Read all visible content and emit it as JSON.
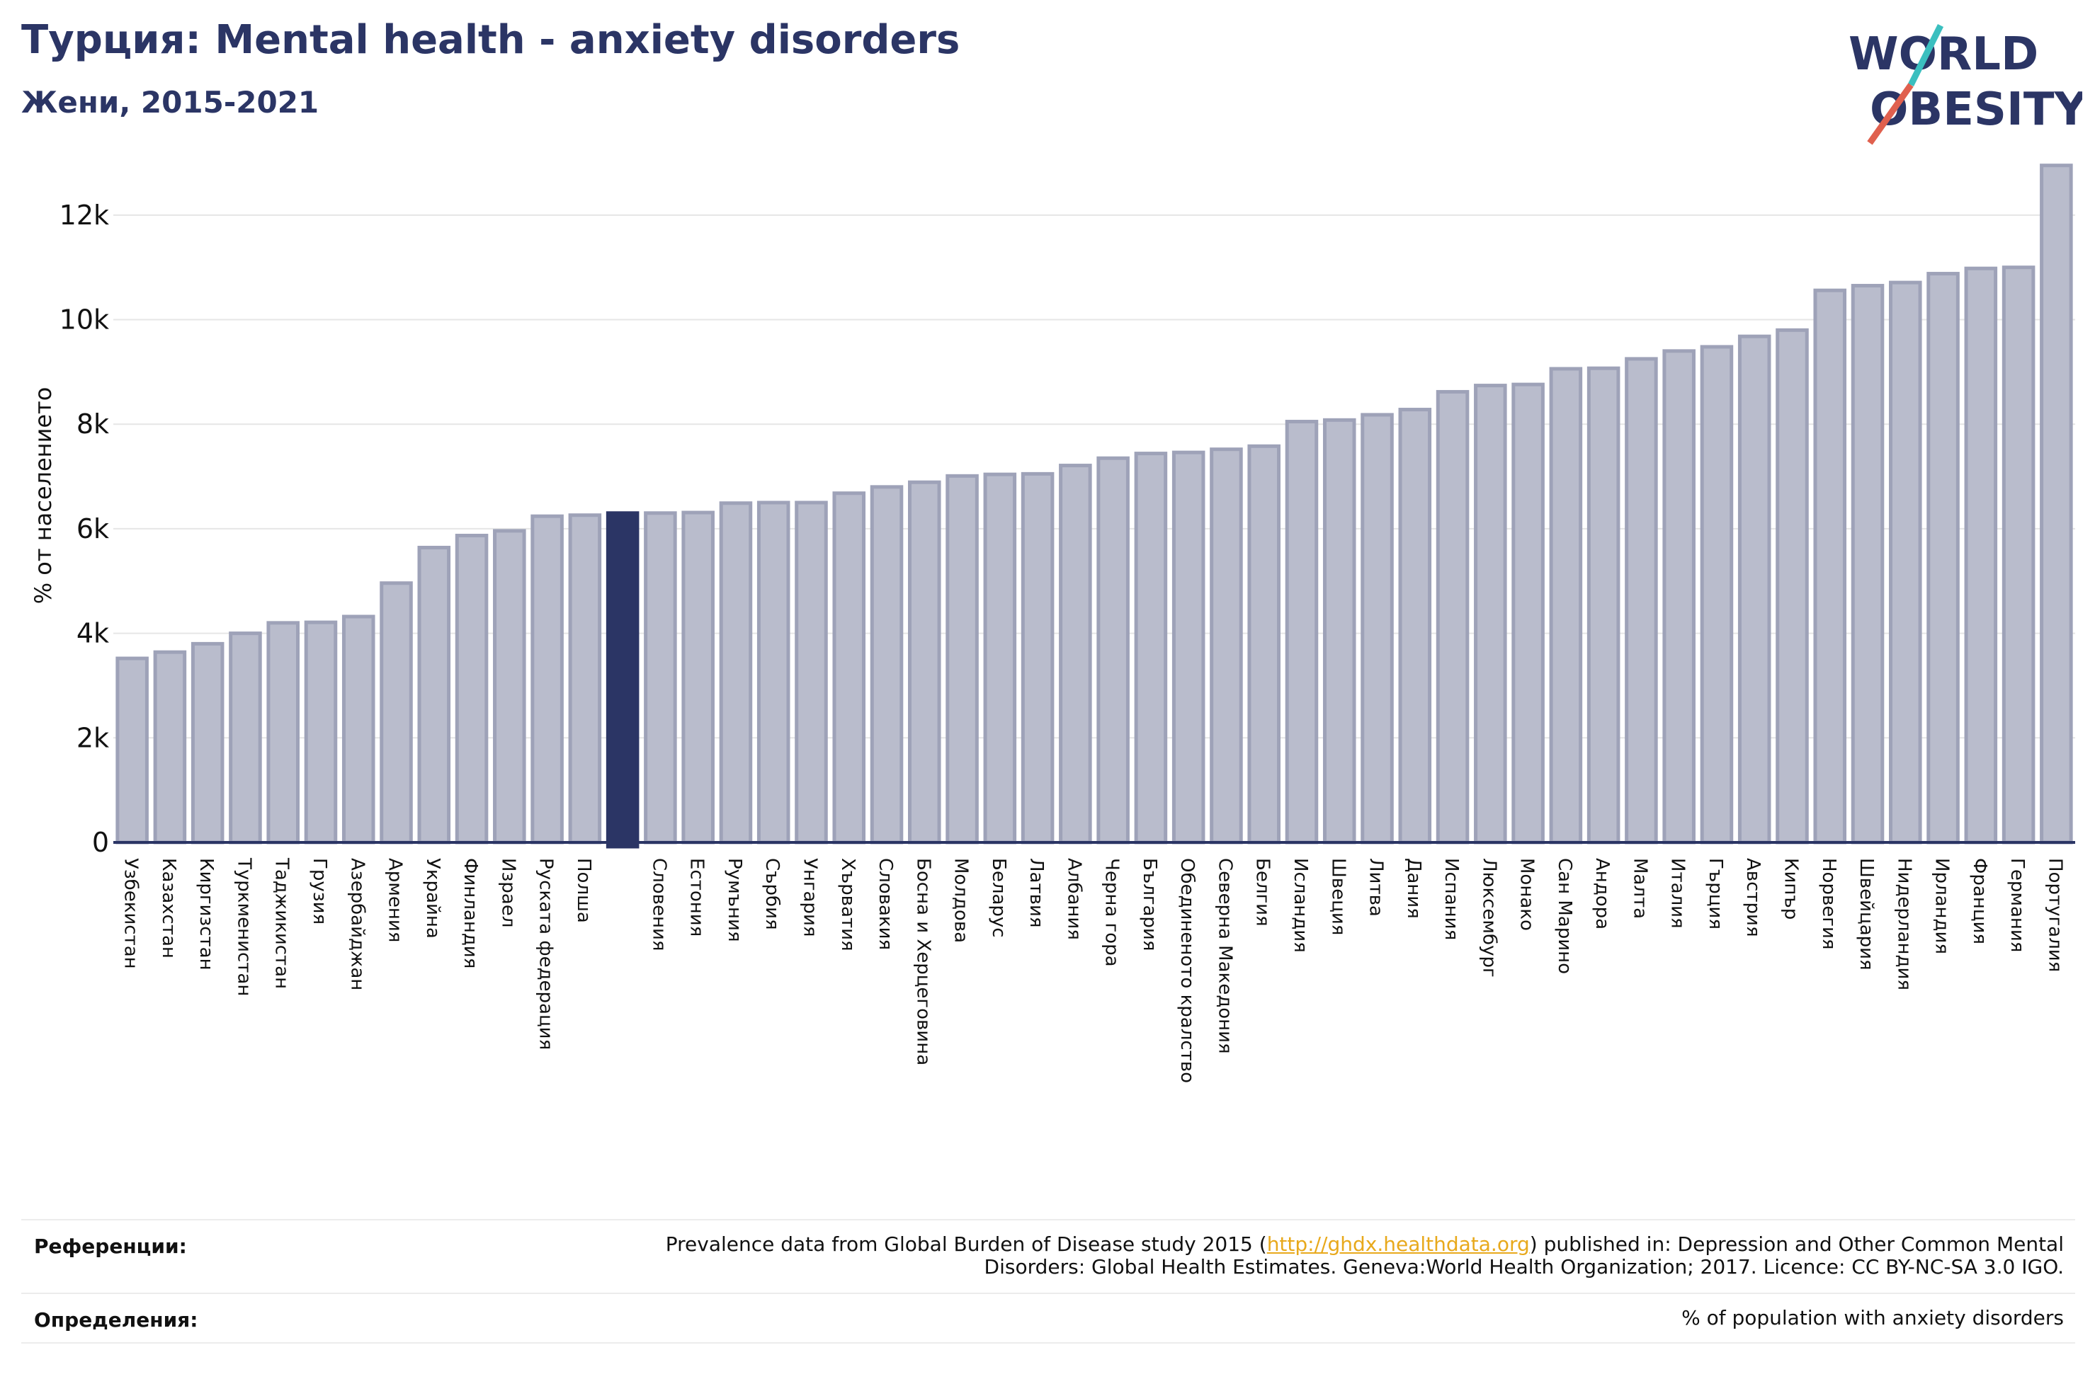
{
  "header": {
    "title": "Турция: Mental health - anxiety disorders",
    "subtitle": "Жени, 2015-2021"
  },
  "logo": {
    "line1": "WORLD",
    "line2": "OBESITY",
    "colors": {
      "text": "#2b3565",
      "slash_top": "#3bbfbf",
      "slash_bottom": "#e0604e"
    }
  },
  "chart_data": {
    "type": "bar",
    "ylabel": "% от населението",
    "y_ticks": [
      "0",
      "2k",
      "4k",
      "6k",
      "8k",
      "10k",
      "12k"
    ],
    "ylim": [
      0,
      13000
    ],
    "grid": true,
    "colors": {
      "bar": "#b9bccc",
      "bar_stroke": "#9ea2b8",
      "highlight": "#2b3565",
      "axis": "#2b3565",
      "grid": "#e6e6e6"
    },
    "highlight_index": 13,
    "categories": [
      "Узбекистан",
      "Казахстан",
      "Киргизстан",
      "Туркменистан",
      "Таджикистан",
      "Грузия",
      "Азербайджан",
      "Армения",
      "Украйна",
      "Финландия",
      "Израел",
      "Руската федерация",
      "Полша",
      "",
      "Словения",
      "Естония",
      "Румъния",
      "Сърбия",
      "Унгария",
      "Хърватия",
      "Словакия",
      "Босна и Херцеговина",
      "Молдова",
      "Беларус",
      "Латвия",
      "Албания",
      "Черна гора",
      "България",
      "Обединеното кралство",
      "Северна Македония",
      "Белгия",
      "Исландия",
      "Швеция",
      "Литва",
      "Дания",
      "Испания",
      "Люксембург",
      "Монако",
      "Сан Марино",
      "Андора",
      "Малта",
      "Италия",
      "Гърция",
      "Австрия",
      "Кипър",
      "Норвегия",
      "Швейцария",
      "Нидерландия",
      "Ирландия",
      "Франция",
      "Германия",
      "Португалия"
    ],
    "values": [
      3520,
      3640,
      3800,
      4000,
      4200,
      4210,
      4320,
      4960,
      5640,
      5870,
      5960,
      6240,
      6260,
      6300,
      6300,
      6310,
      6490,
      6500,
      6500,
      6680,
      6800,
      6890,
      7010,
      7040,
      7050,
      7210,
      7350,
      7440,
      7460,
      7520,
      7580,
      8050,
      8080,
      8180,
      8280,
      8620,
      8740,
      8760,
      9060,
      9070,
      9250,
      9400,
      9480,
      9680,
      9800,
      10560,
      10650,
      10710,
      10880,
      10980,
      11000,
      12950
    ]
  },
  "footer": {
    "references_label": "Референции:",
    "references_text_before": "Prevalence data from Global Burden of Disease study 2015 (",
    "references_link": "http://ghdx.healthdata.org",
    "references_text_after": ") published in: Depression and Other Common Mental",
    "references_line2": "Disorders: Global Health Estimates. Geneva:World Health Organization; 2017. Licence: CC BY-NC-SA 3.0 IGO.",
    "definitions_label": "Определения:",
    "definitions_text": "% of population with anxiety disorders"
  }
}
